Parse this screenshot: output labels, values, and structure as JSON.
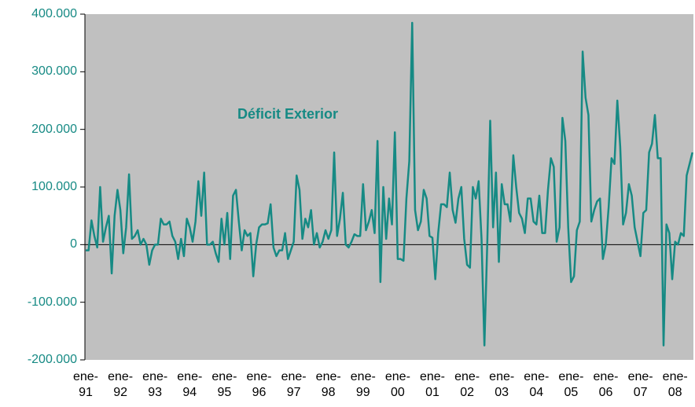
{
  "chart_data": {
    "type": "line",
    "categories": [
      "ene- 91",
      null,
      null,
      null,
      null,
      null,
      null,
      null,
      null,
      null,
      null,
      null,
      "ene- 92",
      null,
      null,
      null,
      null,
      null,
      null,
      null,
      null,
      null,
      null,
      null,
      "ene- 93",
      null,
      null,
      null,
      null,
      null,
      null,
      null,
      null,
      null,
      null,
      null,
      "ene- 94",
      null,
      null,
      null,
      null,
      null,
      null,
      null,
      null,
      null,
      null,
      null,
      "ene- 95",
      null,
      null,
      null,
      null,
      null,
      null,
      null,
      null,
      null,
      null,
      null,
      "ene- 96",
      null,
      null,
      null,
      null,
      null,
      null,
      null,
      null,
      null,
      null,
      null,
      "ene- 97",
      null,
      null,
      null,
      null,
      null,
      null,
      null,
      null,
      null,
      null,
      null,
      "ene- 98",
      null,
      null,
      null,
      null,
      null,
      null,
      null,
      null,
      null,
      null,
      null,
      "ene- 99",
      null,
      null,
      null,
      null,
      null,
      null,
      null,
      null,
      null,
      null,
      null,
      "ene- 00",
      null,
      null,
      null,
      null,
      null,
      null,
      null,
      null,
      null,
      null,
      null,
      "ene- 01",
      null,
      null,
      null,
      null,
      null,
      null,
      null,
      null,
      null,
      null,
      null,
      "ene- 02",
      null,
      null,
      null,
      null,
      null,
      null,
      null,
      null,
      null,
      null,
      null,
      "ene- 03",
      null,
      null,
      null,
      null,
      null,
      null,
      null,
      null,
      null,
      null,
      null,
      "ene- 04",
      null,
      null,
      null,
      null,
      null,
      null,
      null,
      null,
      null,
      null,
      null,
      "ene- 05",
      null,
      null,
      null,
      null,
      null,
      null,
      null,
      null,
      null,
      null,
      null,
      "ene- 06",
      null,
      null,
      null,
      null,
      null,
      null,
      null,
      null,
      null,
      null,
      null,
      "ene- 07",
      null,
      null,
      null,
      null,
      null,
      null,
      null,
      null,
      null,
      null,
      null,
      "ene- 08",
      null,
      null,
      null,
      null,
      null,
      null
    ],
    "series": [
      {
        "name": "Déficit Exterior",
        "color": "#168a84",
        "values": [
          -10000,
          -10000,
          42000,
          15000,
          -5000,
          100000,
          5000,
          30000,
          50000,
          -50000,
          50000,
          95000,
          60000,
          -15000,
          30000,
          122000,
          10000,
          15000,
          25000,
          0,
          10000,
          0,
          -35000,
          -10000,
          0,
          0,
          45000,
          35000,
          35000,
          40000,
          15000,
          5000,
          -25000,
          10000,
          -20000,
          45000,
          30000,
          5000,
          40000,
          110000,
          50000,
          125000,
          0,
          0,
          5000,
          -15000,
          -30000,
          45000,
          0,
          55000,
          -25000,
          85000,
          95000,
          40000,
          -10000,
          25000,
          15000,
          20000,
          -55000,
          0,
          30000,
          35000,
          35000,
          37000,
          70000,
          -5000,
          -20000,
          -10000,
          -10000,
          20000,
          -25000,
          -10000,
          5000,
          120000,
          95000,
          10000,
          45000,
          30000,
          60000,
          0,
          20000,
          -5000,
          5000,
          25000,
          10000,
          25000,
          160000,
          15000,
          45000,
          90000,
          0,
          -5000,
          5000,
          18000,
          15000,
          15000,
          105000,
          25000,
          40000,
          60000,
          20000,
          180000,
          -65000,
          100000,
          10000,
          80000,
          35000,
          195000,
          -25000,
          -25000,
          -28000,
          80000,
          145000,
          385000,
          60000,
          25000,
          40000,
          95000,
          80000,
          15000,
          12000,
          -60000,
          20000,
          70000,
          70000,
          65000,
          125000,
          60000,
          38000,
          80000,
          100000,
          10000,
          -35000,
          -40000,
          100000,
          80000,
          110000,
          10000,
          -175000,
          5000,
          215000,
          30000,
          125000,
          -30000,
          105000,
          70000,
          70000,
          40000,
          155000,
          100000,
          55000,
          45000,
          20000,
          80000,
          80000,
          40000,
          35000,
          85000,
          20000,
          20000,
          95000,
          150000,
          135000,
          5000,
          30000,
          220000,
          180000,
          30000,
          -65000,
          -55000,
          25000,
          40000,
          335000,
          255000,
          225000,
          40000,
          60000,
          75000,
          80000,
          -25000,
          0,
          65000,
          150000,
          140000,
          250000,
          170000,
          35000,
          55000,
          105000,
          85000,
          30000,
          5000,
          -20000,
          55000,
          60000,
          160000,
          175000,
          225000,
          150000,
          150000,
          -175000,
          35000,
          20000,
          -60000,
          5000,
          0,
          20000,
          15000,
          120000,
          140000,
          160000
        ]
      }
    ],
    "ylim": [
      -200000,
      400000
    ],
    "yticks": [
      {
        "value": -200000,
        "label": "-200.000"
      },
      {
        "value": -100000,
        "label": "-100.000"
      },
      0,
      {
        "value": 100000,
        "label": "100.000"
      },
      {
        "value": 200000,
        "label": "200.000"
      },
      {
        "value": 300000,
        "label": "300.000"
      },
      {
        "value": 400000,
        "label": "400.000"
      }
    ],
    "plot_background": "#c0c0c0"
  }
}
